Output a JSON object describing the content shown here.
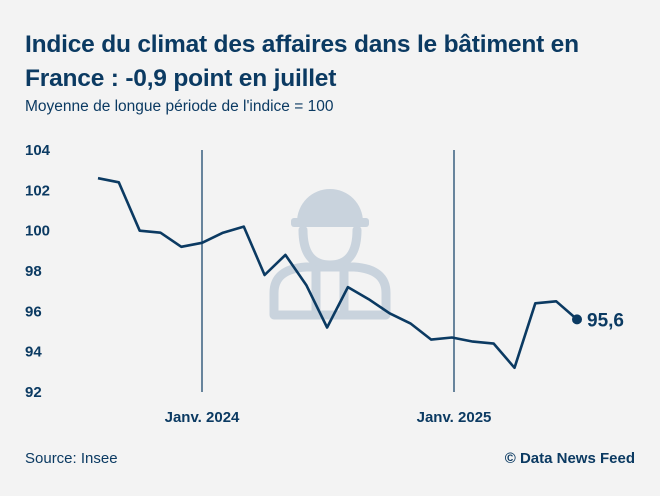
{
  "title": "Indice du climat des affaires dans le bâtiment en France : -0,9 point en juillet",
  "subtitle": "Moyenne de longue période de l'indice = 100",
  "source": "Source: Insee",
  "credit": "© Data News Feed",
  "colors": {
    "line": "#0b3a62",
    "text": "#0b3a62",
    "background": "#f3f3f3",
    "watermark": "#c9d3dd"
  },
  "watermark_icon": "construction-worker-icon",
  "chart_data": {
    "type": "line",
    "title": "Indice du climat des affaires dans le bâtiment en France : -0,9 point en juillet",
    "subtitle": "Moyenne de longue période de l'indice = 100",
    "ylabel": "",
    "xlabel": "",
    "ylim": [
      92,
      104
    ],
    "yticks": [
      104,
      102,
      100,
      98,
      96,
      94,
      92
    ],
    "x_marker_labels": [
      "Janv. 2024",
      "Janv. 2025"
    ],
    "grid": false,
    "series": [
      {
        "values": [
          102.6,
          102.4,
          100.0,
          99.9,
          99.2,
          99.4,
          99.9,
          100.2,
          97.8,
          98.8,
          97.3,
          95.2,
          97.2,
          96.6,
          95.9,
          95.4,
          94.6,
          94.7,
          94.5,
          94.4,
          93.2,
          96.4,
          96.5,
          95.6
        ]
      }
    ],
    "last_value_label": "95,6"
  }
}
